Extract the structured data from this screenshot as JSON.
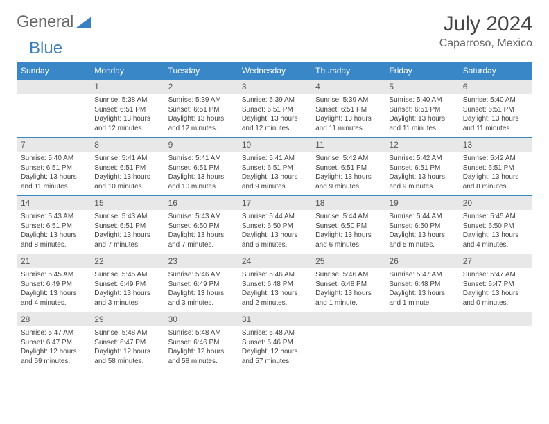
{
  "brand": {
    "part1": "General",
    "part2": "Blue"
  },
  "title": "July 2024",
  "location": "Caparroso, Mexico",
  "colors": {
    "header_bg": "#3a87c8",
    "header_text": "#ffffff",
    "daynum_bg": "#e8e8e8",
    "rule": "#3a87c8",
    "brand_blue": "#3a7fbf"
  },
  "day_labels": [
    "Sunday",
    "Monday",
    "Tuesday",
    "Wednesday",
    "Thursday",
    "Friday",
    "Saturday"
  ],
  "weeks": [
    [
      {
        "n": "",
        "sr": "",
        "ss": "",
        "dl": ""
      },
      {
        "n": "1",
        "sr": "5:38 AM",
        "ss": "6:51 PM",
        "dl": "13 hours and 12 minutes."
      },
      {
        "n": "2",
        "sr": "5:39 AM",
        "ss": "6:51 PM",
        "dl": "13 hours and 12 minutes."
      },
      {
        "n": "3",
        "sr": "5:39 AM",
        "ss": "6:51 PM",
        "dl": "13 hours and 12 minutes."
      },
      {
        "n": "4",
        "sr": "5:39 AM",
        "ss": "6:51 PM",
        "dl": "13 hours and 11 minutes."
      },
      {
        "n": "5",
        "sr": "5:40 AM",
        "ss": "6:51 PM",
        "dl": "13 hours and 11 minutes."
      },
      {
        "n": "6",
        "sr": "5:40 AM",
        "ss": "6:51 PM",
        "dl": "13 hours and 11 minutes."
      }
    ],
    [
      {
        "n": "7",
        "sr": "5:40 AM",
        "ss": "6:51 PM",
        "dl": "13 hours and 11 minutes."
      },
      {
        "n": "8",
        "sr": "5:41 AM",
        "ss": "6:51 PM",
        "dl": "13 hours and 10 minutes."
      },
      {
        "n": "9",
        "sr": "5:41 AM",
        "ss": "6:51 PM",
        "dl": "13 hours and 10 minutes."
      },
      {
        "n": "10",
        "sr": "5:41 AM",
        "ss": "6:51 PM",
        "dl": "13 hours and 9 minutes."
      },
      {
        "n": "11",
        "sr": "5:42 AM",
        "ss": "6:51 PM",
        "dl": "13 hours and 9 minutes."
      },
      {
        "n": "12",
        "sr": "5:42 AM",
        "ss": "6:51 PM",
        "dl": "13 hours and 9 minutes."
      },
      {
        "n": "13",
        "sr": "5:42 AM",
        "ss": "6:51 PM",
        "dl": "13 hours and 8 minutes."
      }
    ],
    [
      {
        "n": "14",
        "sr": "5:43 AM",
        "ss": "6:51 PM",
        "dl": "13 hours and 8 minutes."
      },
      {
        "n": "15",
        "sr": "5:43 AM",
        "ss": "6:51 PM",
        "dl": "13 hours and 7 minutes."
      },
      {
        "n": "16",
        "sr": "5:43 AM",
        "ss": "6:50 PM",
        "dl": "13 hours and 7 minutes."
      },
      {
        "n": "17",
        "sr": "5:44 AM",
        "ss": "6:50 PM",
        "dl": "13 hours and 6 minutes."
      },
      {
        "n": "18",
        "sr": "5:44 AM",
        "ss": "6:50 PM",
        "dl": "13 hours and 6 minutes."
      },
      {
        "n": "19",
        "sr": "5:44 AM",
        "ss": "6:50 PM",
        "dl": "13 hours and 5 minutes."
      },
      {
        "n": "20",
        "sr": "5:45 AM",
        "ss": "6:50 PM",
        "dl": "13 hours and 4 minutes."
      }
    ],
    [
      {
        "n": "21",
        "sr": "5:45 AM",
        "ss": "6:49 PM",
        "dl": "13 hours and 4 minutes."
      },
      {
        "n": "22",
        "sr": "5:45 AM",
        "ss": "6:49 PM",
        "dl": "13 hours and 3 minutes."
      },
      {
        "n": "23",
        "sr": "5:46 AM",
        "ss": "6:49 PM",
        "dl": "13 hours and 3 minutes."
      },
      {
        "n": "24",
        "sr": "5:46 AM",
        "ss": "6:48 PM",
        "dl": "13 hours and 2 minutes."
      },
      {
        "n": "25",
        "sr": "5:46 AM",
        "ss": "6:48 PM",
        "dl": "13 hours and 1 minute."
      },
      {
        "n": "26",
        "sr": "5:47 AM",
        "ss": "6:48 PM",
        "dl": "13 hours and 1 minute."
      },
      {
        "n": "27",
        "sr": "5:47 AM",
        "ss": "6:47 PM",
        "dl": "13 hours and 0 minutes."
      }
    ],
    [
      {
        "n": "28",
        "sr": "5:47 AM",
        "ss": "6:47 PM",
        "dl": "12 hours and 59 minutes."
      },
      {
        "n": "29",
        "sr": "5:48 AM",
        "ss": "6:47 PM",
        "dl": "12 hours and 58 minutes."
      },
      {
        "n": "30",
        "sr": "5:48 AM",
        "ss": "6:46 PM",
        "dl": "12 hours and 58 minutes."
      },
      {
        "n": "31",
        "sr": "5:48 AM",
        "ss": "6:46 PM",
        "dl": "12 hours and 57 minutes."
      },
      {
        "n": "",
        "sr": "",
        "ss": "",
        "dl": ""
      },
      {
        "n": "",
        "sr": "",
        "ss": "",
        "dl": ""
      },
      {
        "n": "",
        "sr": "",
        "ss": "",
        "dl": ""
      }
    ]
  ],
  "labels": {
    "sunrise": "Sunrise:",
    "sunset": "Sunset:",
    "daylight": "Daylight:"
  }
}
